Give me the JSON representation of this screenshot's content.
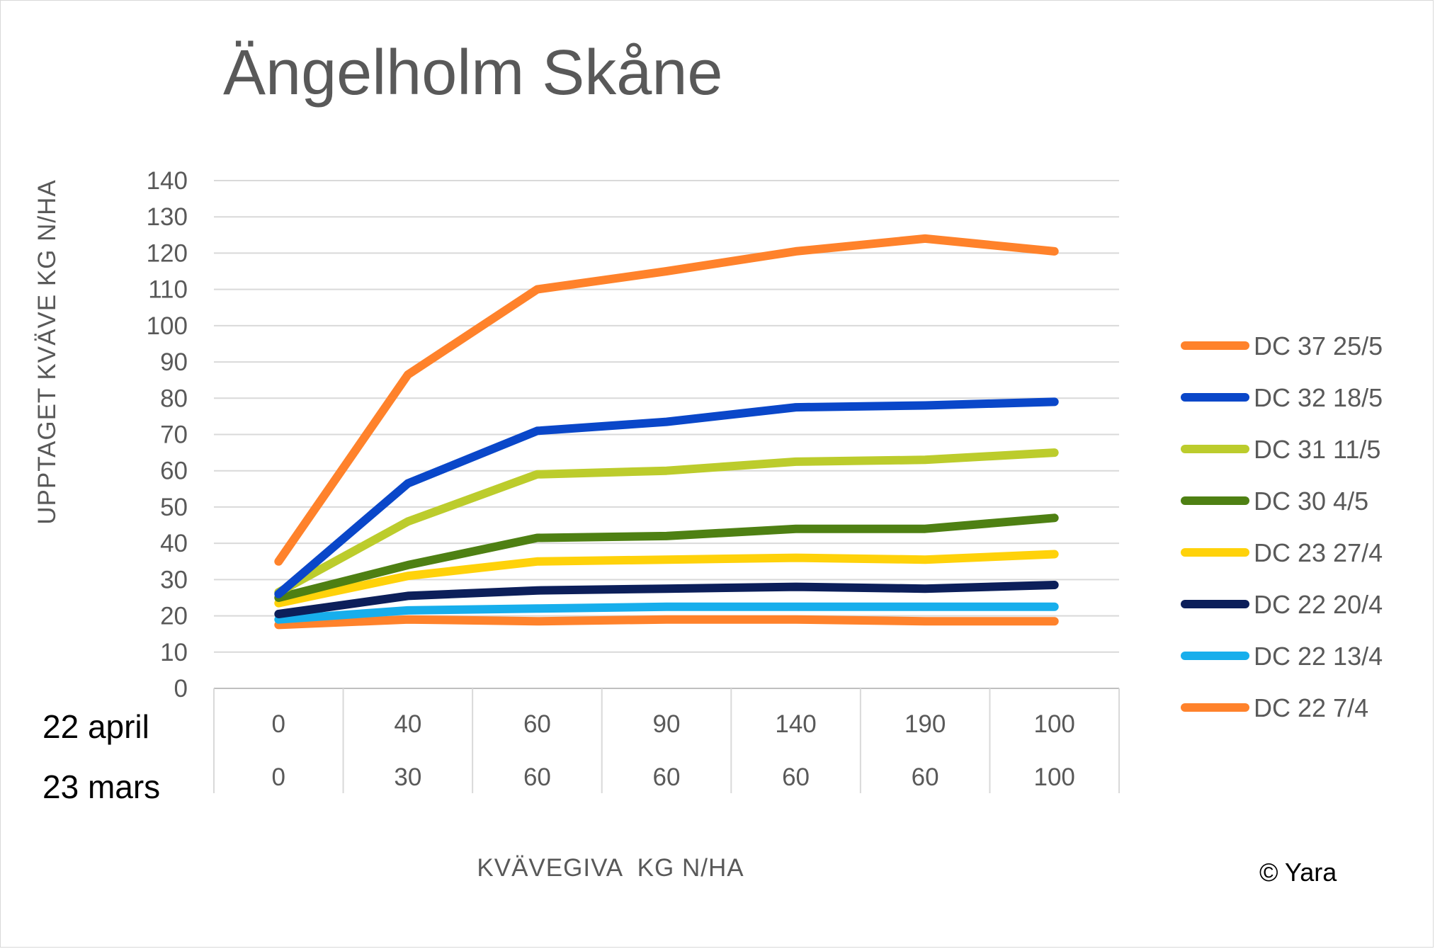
{
  "chart_data": {
    "type": "line",
    "title": "Ängelholm Skåne",
    "ylabel": "UPPTAGET KVÄVE KG N/HA",
    "xlabel": "KVÄVEGIVA  KG N/HA",
    "ylim": [
      0,
      140
    ],
    "yticks": [
      0,
      10,
      20,
      30,
      40,
      50,
      60,
      70,
      80,
      90,
      100,
      110,
      120,
      130,
      140
    ],
    "grid": true,
    "legend_position": "right",
    "category_rows": [
      {
        "label": "22 april",
        "values": [
          "0",
          "40",
          "60",
          "90",
          "140",
          "190",
          "100"
        ]
      },
      {
        "label": "23 mars",
        "values": [
          "0",
          "30",
          "60",
          "60",
          "60",
          "60",
          "100"
        ]
      }
    ],
    "series": [
      {
        "name": "DC 37 25/5",
        "color": "#FF822B",
        "values": [
          35,
          86.5,
          110,
          115,
          120.5,
          124,
          120.5
        ]
      },
      {
        "name": "DC 32 18/5",
        "color": "#0A47C9",
        "values": [
          26,
          56.5,
          71,
          73.5,
          77.5,
          78,
          79
        ]
      },
      {
        "name": "DC 31 11/5",
        "color": "#BCCC2C",
        "values": [
          26.5,
          46,
          59,
          60,
          62.5,
          63,
          65
        ]
      },
      {
        "name": "DC 30 4/5",
        "color": "#4E8013",
        "values": [
          25,
          34,
          41.5,
          42,
          44,
          44,
          47
        ]
      },
      {
        "name": "DC 23 27/4",
        "color": "#FFD20A",
        "values": [
          23.5,
          31,
          35,
          35.5,
          36,
          35.5,
          37
        ]
      },
      {
        "name": "DC 22 20/4",
        "color": "#0C1F5A",
        "values": [
          20.5,
          25.5,
          27,
          27.5,
          28,
          27.5,
          28.5
        ]
      },
      {
        "name": "DC 22 13/4",
        "color": "#17AEEC",
        "values": [
          19,
          21.5,
          22,
          22.5,
          22.5,
          22.5,
          22.5
        ]
      },
      {
        "name": "DC 22 7/4",
        "color": "#FF822B",
        "values": [
          17.5,
          19,
          18.5,
          19,
          19,
          18.5,
          18.5
        ]
      }
    ]
  },
  "copyright": "© Yara"
}
